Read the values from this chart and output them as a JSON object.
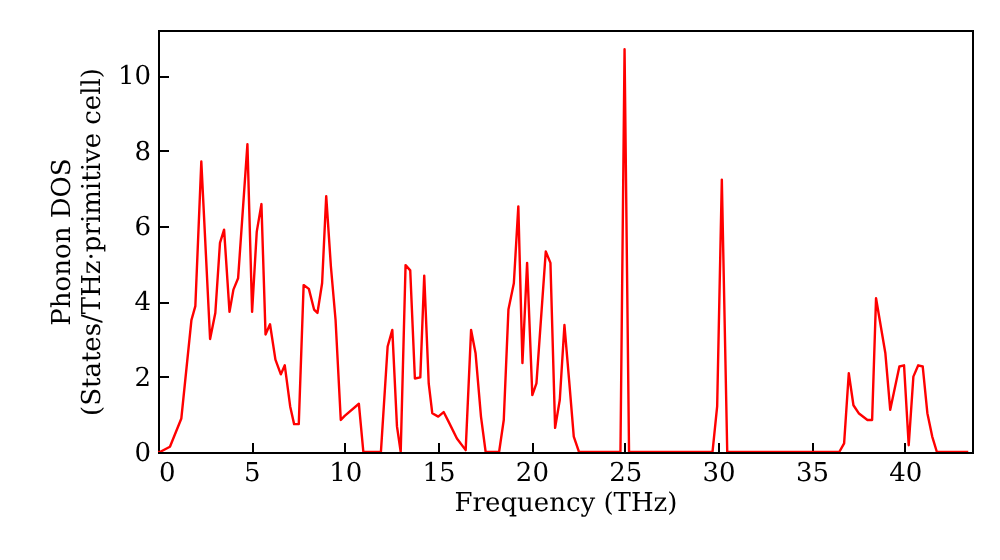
{
  "chart_data": {
    "type": "line",
    "xlabel": "Frequency (THz)",
    "ylabel": "Phonon DOS\n(States/THz·primitive cell)",
    "x": [
      0,
      0.1,
      0.64,
      1.25,
      1.79,
      2.0,
      2.32,
      2.79,
      3.07,
      3.32,
      3.54,
      3.83,
      4.04,
      4.29,
      4.79,
      5.04,
      5.29,
      5.54,
      5.76,
      6.0,
      6.29,
      6.58,
      6.79,
      7.08,
      7.29,
      7.54,
      7.8,
      8.08,
      8.36,
      8.54,
      8.79,
      9.01,
      9.26,
      9.51,
      9.79,
      10.0,
      10.76,
      11.0,
      11.94,
      12.3,
      12.55,
      12.8,
      13.0,
      13.26,
      13.51,
      13.76,
      14.05,
      14.26,
      14.5,
      14.69,
      15.01,
      15.3,
      15.55,
      16.01,
      16.48,
      16.77,
      17.01,
      17.3,
      17.55,
      18.27,
      18.52,
      18.77,
      19.06,
      19.3,
      19.52,
      19.77,
      20.05,
      20.27,
      20.77,
      21.02,
      21.27,
      21.52,
      21.77,
      22.02,
      22.27,
      22.55,
      24.77,
      24.99,
      25.23,
      29.7,
      29.95,
      30.2,
      30.49,
      36.49,
      36.75,
      37.0,
      37.25,
      37.53,
      38.0,
      38.25,
      38.46,
      38.96,
      39.22,
      39.71,
      39.96,
      40.21,
      40.46,
      40.72,
      40.96,
      41.21,
      41.47,
      41.72,
      43.4
    ],
    "series": [
      {
        "color": "#ff0000",
        "values": [
          0,
          0,
          0.14,
          0.89,
          3.5,
          3.87,
          7.71,
          3.0,
          3.69,
          5.55,
          5.9,
          3.72,
          4.31,
          4.61,
          8.17,
          3.72,
          5.85,
          6.58,
          3.12,
          3.39,
          2.45,
          2.06,
          2.3,
          1.21,
          0.74,
          0.74,
          4.43,
          4.33,
          3.78,
          3.69,
          4.48,
          6.79,
          4.93,
          3.51,
          0.85,
          0.96,
          1.28,
          0,
          0,
          2.8,
          3.24,
          0.68,
          0,
          4.96,
          4.82,
          1.95,
          1.98,
          4.68,
          1.82,
          1.03,
          0.94,
          1.06,
          0.82,
          0.36,
          0.05,
          3.24,
          2.62,
          0.94,
          0,
          0,
          0.85,
          3.78,
          4.48,
          6.52,
          2.36,
          5.02,
          1.51,
          1.82,
          5.32,
          5.02,
          0.64,
          1.38,
          3.37,
          1.91,
          0.41,
          0,
          0,
          10.69,
          0,
          0,
          1.21,
          7.23,
          0,
          0,
          0.23,
          2.09,
          1.24,
          1.03,
          0.85,
          0.85,
          4.08,
          2.62,
          1.12,
          2.27,
          2.3,
          0.18,
          2.0,
          2.3,
          2.27,
          1.03,
          0.41,
          0,
          0
        ]
      }
    ],
    "xlim": [
      0,
      43.6
    ],
    "xticks": [
      0,
      5,
      10,
      15,
      20,
      25,
      30,
      35,
      40
    ],
    "ylim": [
      0,
      11.2
    ],
    "yticks": [
      0,
      2,
      4,
      6,
      8,
      10
    ],
    "grid": false,
    "line_style": "solid",
    "marker": "none"
  }
}
